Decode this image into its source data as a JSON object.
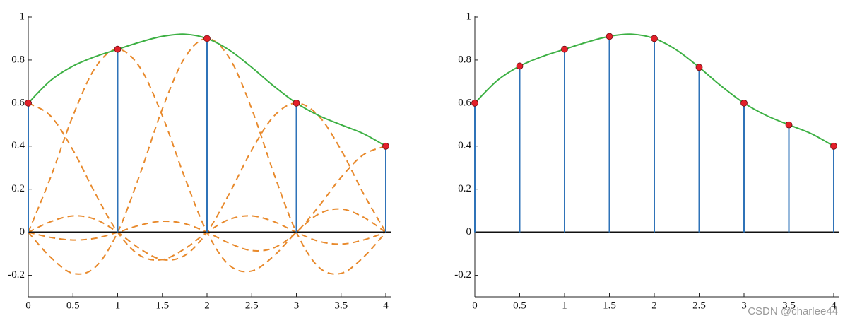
{
  "chart_data": [
    {
      "type": "stem",
      "x": [
        0,
        1,
        2,
        3,
        4
      ],
      "values": [
        0.6,
        0.85,
        0.9,
        0.6,
        0.4
      ],
      "color": "#2f73b8",
      "marker_color": "#e3202a",
      "xlim": [
        0,
        4
      ],
      "ylim": [
        -0.3,
        1
      ],
      "xticks": [
        0,
        0.5,
        1,
        1.5,
        2,
        2.5,
        3,
        3.5,
        4
      ],
      "yticks": [
        -0.2,
        0,
        0.2,
        0.4,
        0.6,
        0.8,
        1
      ],
      "curve": {
        "color": "#3cb043",
        "x": [
          0,
          0.25,
          0.5,
          0.75,
          1,
          1.25,
          1.5,
          1.75,
          2,
          2.25,
          2.5,
          2.75,
          3,
          3.25,
          3.5,
          3.75,
          4
        ],
        "values": [
          0.6,
          0.705,
          0.772,
          0.816,
          0.85,
          0.883,
          0.91,
          0.92,
          0.9,
          0.846,
          0.766,
          0.678,
          0.6,
          0.542,
          0.499,
          0.458,
          0.4
        ]
      },
      "kernels": {
        "color": "#e8892b",
        "values": [
          [
            0.6,
            0.54,
            0.382,
            0.18,
            0,
            -0.108,
            -0.127,
            -0.077,
            0,
            0.06,
            0.076,
            0.049,
            0,
            -0.042,
            -0.055,
            -0.036,
            0
          ],
          [
            0,
            0.255,
            0.541,
            0.765,
            0.85,
            0.765,
            0.541,
            0.255,
            0,
            -0.153,
            -0.18,
            -0.109,
            0,
            0.085,
            0.108,
            0.07,
            0
          ],
          [
            0,
            -0.116,
            -0.191,
            -0.162,
            0,
            0.27,
            0.573,
            0.81,
            0.9,
            0.81,
            0.573,
            0.27,
            0,
            -0.162,
            -0.191,
            -0.116,
            0
          ],
          [
            0,
            0.049,
            0.076,
            0.06,
            0,
            -0.077,
            -0.127,
            -0.108,
            0,
            0.18,
            0.382,
            0.54,
            0.6,
            0.54,
            0.382,
            0.18,
            0
          ],
          [
            0,
            -0.024,
            -0.036,
            -0.028,
            0,
            0.033,
            0.051,
            0.04,
            0,
            -0.051,
            -0.085,
            -0.072,
            0,
            0.12,
            0.255,
            0.36,
            0.4
          ]
        ]
      }
    },
    {
      "type": "stem",
      "x": [
        0,
        0.5,
        1,
        1.5,
        2,
        2.5,
        3,
        3.5,
        4
      ],
      "values": [
        0.6,
        0.772,
        0.85,
        0.91,
        0.9,
        0.766,
        0.6,
        0.499,
        0.4
      ],
      "color": "#2f73b8",
      "marker_color": "#e3202a",
      "xlim": [
        0,
        4
      ],
      "ylim": [
        -0.3,
        1
      ],
      "xticks": [
        0,
        0.5,
        1,
        1.5,
        2,
        2.5,
        3,
        3.5,
        4
      ],
      "yticks": [
        -0.2,
        0,
        0.2,
        0.4,
        0.6,
        0.8,
        1
      ],
      "curve": {
        "color": "#3cb043",
        "x": [
          0,
          0.25,
          0.5,
          0.75,
          1,
          1.25,
          1.5,
          1.75,
          2,
          2.25,
          2.5,
          2.75,
          3,
          3.25,
          3.5,
          3.75,
          4
        ],
        "values": [
          0.6,
          0.705,
          0.772,
          0.816,
          0.85,
          0.883,
          0.91,
          0.92,
          0.9,
          0.846,
          0.766,
          0.678,
          0.6,
          0.542,
          0.499,
          0.458,
          0.4
        ]
      }
    }
  ],
  "watermark": "CSDN @charlee44"
}
